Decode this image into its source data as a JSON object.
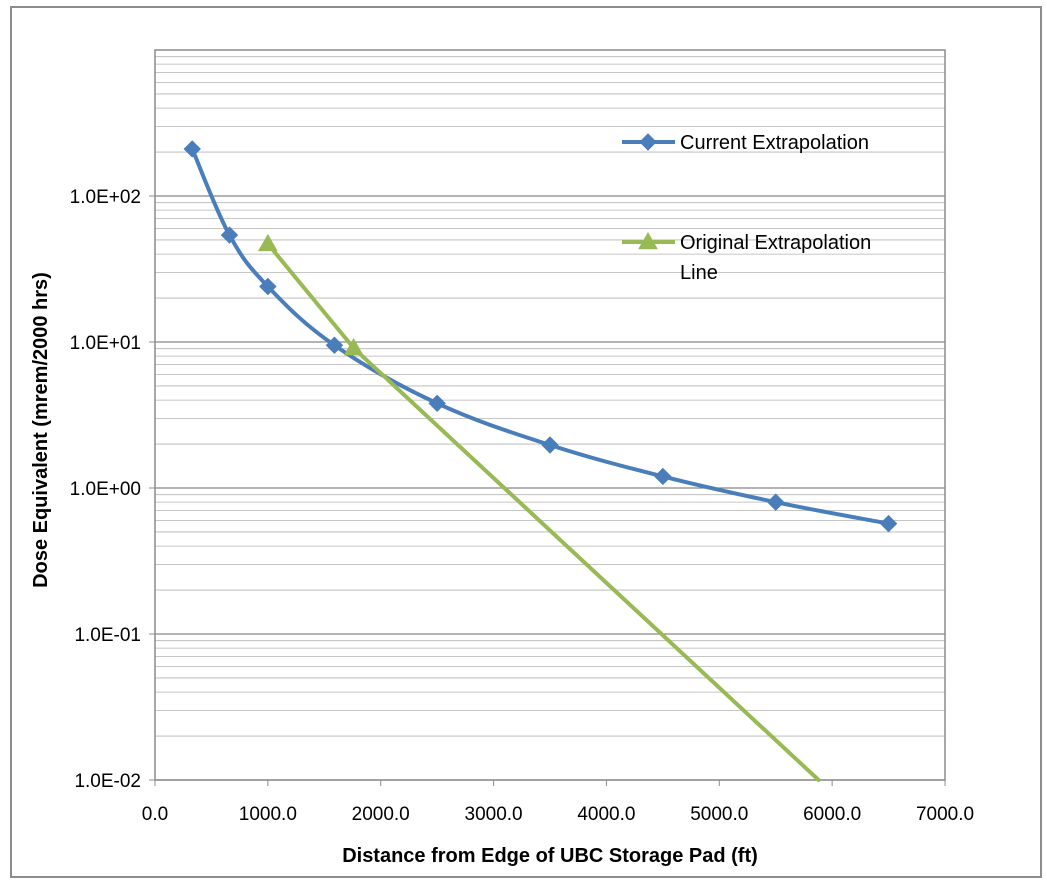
{
  "chart_data": {
    "type": "line",
    "title": "",
    "xlabel": "Distance from Edge of UBC Storage Pad (ft)",
    "ylabel": "Dose Equivalent (mrem/2000 hrs)",
    "xlim": [
      0,
      7000
    ],
    "ylim": [
      0.01,
      1000
    ],
    "y_scale": "log",
    "grid": true,
    "legend_position": "right",
    "x_ticks": [
      "0.0",
      "1000.0",
      "2000.0",
      "3000.0",
      "4000.0",
      "5000.0",
      "6000.0",
      "7000.0"
    ],
    "y_ticks": [
      "1.0E-02",
      "1.0E-01",
      "1.0E+00",
      "1.0E+01",
      "1.0E+02"
    ],
    "series": [
      {
        "name": "Current Extrapolation",
        "color": "#4a7ebb",
        "marker": "diamond",
        "smooth": true,
        "x": [
          330,
          660,
          1000,
          1590,
          2500,
          3500,
          4500,
          5500,
          6500
        ],
        "y": [
          210,
          54,
          24,
          9.5,
          3.8,
          1.97,
          1.2,
          0.8,
          0.57
        ]
      },
      {
        "name": "Original Extrapolation Line",
        "color": "#98b954",
        "marker": "triangle",
        "smooth": false,
        "x": [
          1000,
          1760,
          5880
        ],
        "y": [
          47,
          9.1,
          0.01
        ]
      }
    ]
  }
}
